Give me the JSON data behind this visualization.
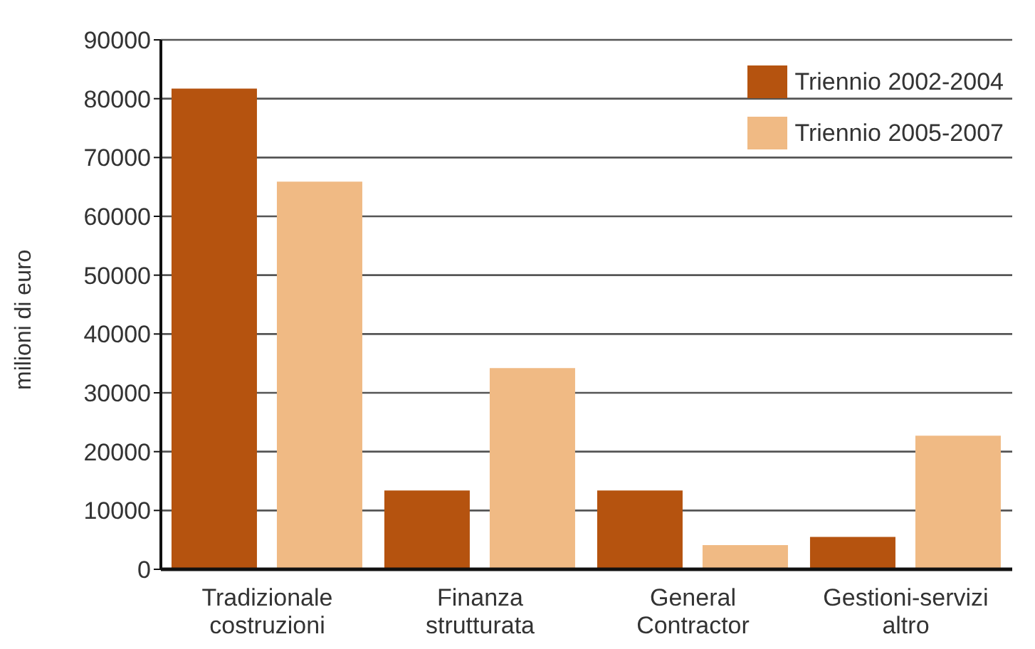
{
  "chart_data": {
    "type": "bar",
    "ylabel": "milioni di euro",
    "categories": [
      "Tradizionale costruzioni",
      "Finanza strutturata",
      "General Contractor",
      "Gestioni-servizi altro"
    ],
    "series": [
      {
        "name": "Triennio 2002-2004",
        "color": "#b5530f",
        "values": [
          81700,
          13400,
          13400,
          5500
        ]
      },
      {
        "name": "Triennio 2005-2007",
        "color": "#f0ba84",
        "values": [
          65900,
          34200,
          4100,
          22700
        ]
      }
    ],
    "ylim": [
      0,
      90000
    ],
    "yticks": [
      0,
      10000,
      20000,
      30000,
      40000,
      50000,
      60000,
      70000,
      80000,
      90000
    ],
    "grid": "y",
    "legend": "top right"
  }
}
